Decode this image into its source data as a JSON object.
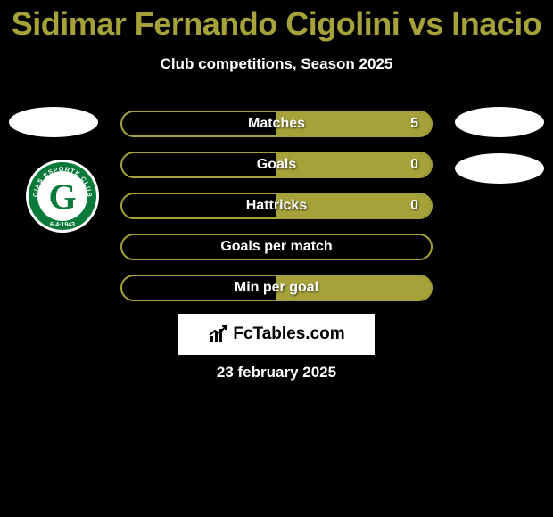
{
  "title": "Sidimar Fernando Cigolini vs Inacio",
  "subtitle": "Club competitions, Season 2025",
  "date": "23 february 2025",
  "watermark_text": "FcTables.com",
  "colors": {
    "accent": "#a6a23a",
    "background": "#000000",
    "text": "#ffffff",
    "watermark_bg": "#ffffff",
    "watermark_text": "#000000"
  },
  "club_left": {
    "name": "Goiás Esporte Clube",
    "founded": "6-4-1943",
    "ring_color": "#0a7a3a",
    "inner_bg": "#ffffff",
    "letter": "G",
    "letter_color": "#0a7a3a"
  },
  "stats": [
    {
      "label": "Matches",
      "left_value": null,
      "right_value": "5",
      "fill_right_pct": 50
    },
    {
      "label": "Goals",
      "left_value": null,
      "right_value": "0",
      "fill_right_pct": 50
    },
    {
      "label": "Hattricks",
      "left_value": null,
      "right_value": "0",
      "fill_right_pct": 50
    },
    {
      "label": "Goals per match",
      "left_value": null,
      "right_value": null,
      "fill_right_pct": 0
    },
    {
      "label": "Min per goal",
      "left_value": null,
      "right_value": null,
      "fill_right_pct": 50
    }
  ]
}
